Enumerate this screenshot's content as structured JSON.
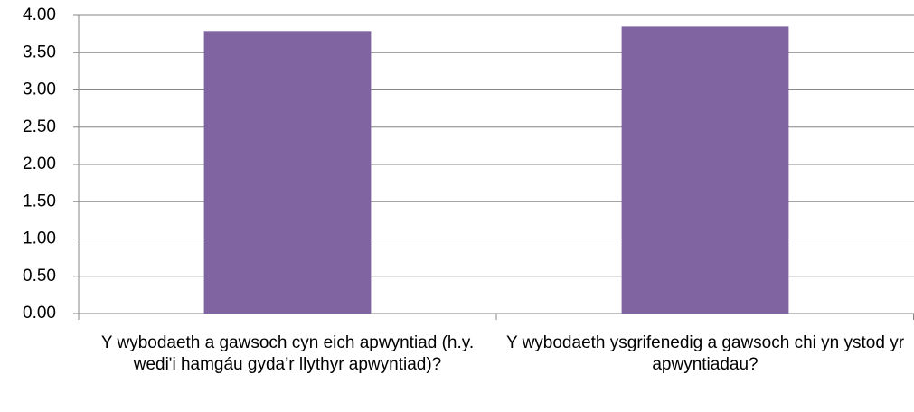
{
  "chart_data": {
    "type": "bar",
    "categories": [
      "Y wybodaeth a gawsoch cyn eich apwyntiad (h.y. wedi'i hamgáu gyda’r llythyr apwyntiad)?",
      "Y wybodaeth ysgrifenedig a gawsoch chi yn ystod yr apwyntiadau?"
    ],
    "values": [
      3.79,
      3.85
    ],
    "color": "#8064a2",
    "ylim": [
      0,
      4
    ],
    "yticks": [
      {
        "value": 0,
        "label": "0.00"
      },
      {
        "value": 0.5,
        "label": "0.50"
      },
      {
        "value": 1,
        "label": "1.00"
      },
      {
        "value": 1.5,
        "label": "1.50"
      },
      {
        "value": 2,
        "label": "2.00"
      },
      {
        "value": 2.5,
        "label": "2.50"
      },
      {
        "value": 3,
        "label": "3.00"
      },
      {
        "value": 3.5,
        "label": "3.50"
      },
      {
        "value": 4,
        "label": "4.00"
      }
    ],
    "grid": true
  }
}
